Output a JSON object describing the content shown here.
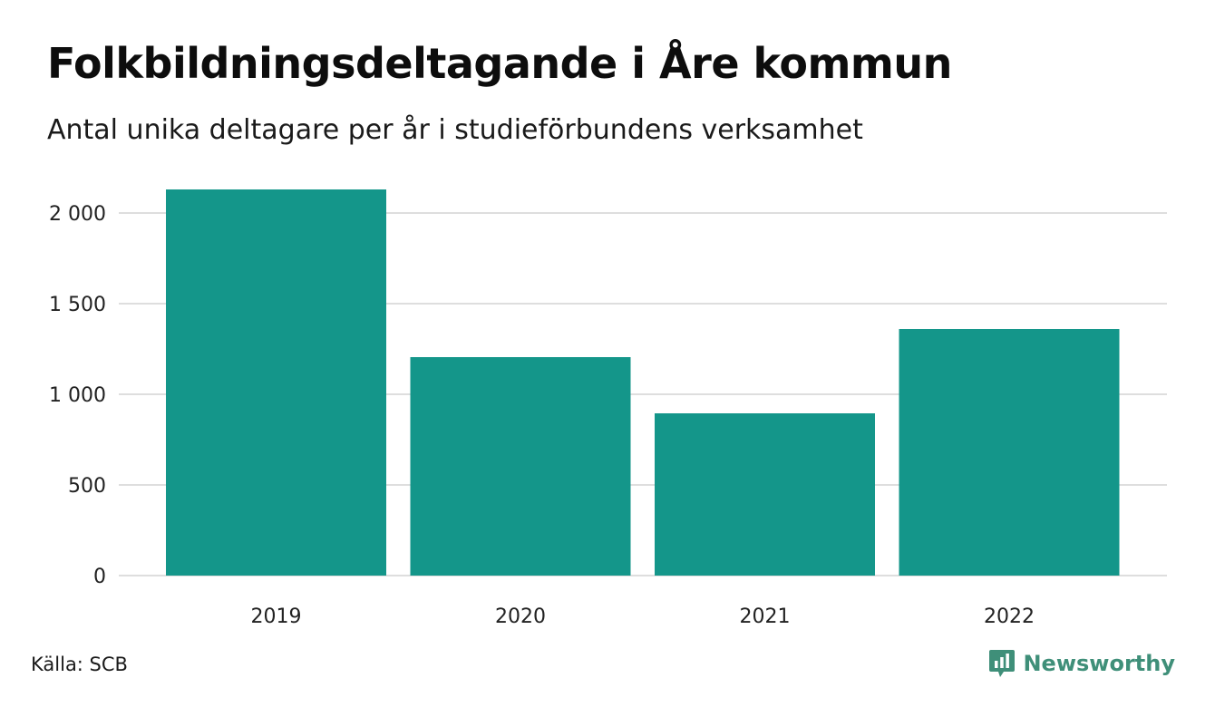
{
  "header": {
    "title": "Folkbildningsdeltagande i Åre kommun",
    "subtitle": "Antal unika deltagare per år i studieförbundens verksamhet"
  },
  "footer": {
    "source": "Källa: SCB",
    "brand": "Newsworthy",
    "brand_icon": "newsworthy-logo-icon"
  },
  "colors": {
    "bar": "#14968a",
    "grid": "#dedede",
    "brand": "#3f8f79"
  },
  "chart_data": {
    "type": "bar",
    "title": "Folkbildningsdeltagande i Åre kommun",
    "subtitle": "Antal unika deltagare per år i studieförbundens verksamhet",
    "xlabel": "",
    "ylabel": "",
    "categories": [
      "2019",
      "2020",
      "2021",
      "2022"
    ],
    "values": [
      2130,
      1205,
      895,
      1360
    ],
    "ylim": [
      0,
      2000
    ],
    "yticks": [
      0,
      500,
      1000,
      1500,
      2000
    ],
    "ytick_labels": [
      "0",
      "500",
      "1 000",
      "1 500",
      "2 000"
    ],
    "grid": true,
    "legend": "none"
  }
}
